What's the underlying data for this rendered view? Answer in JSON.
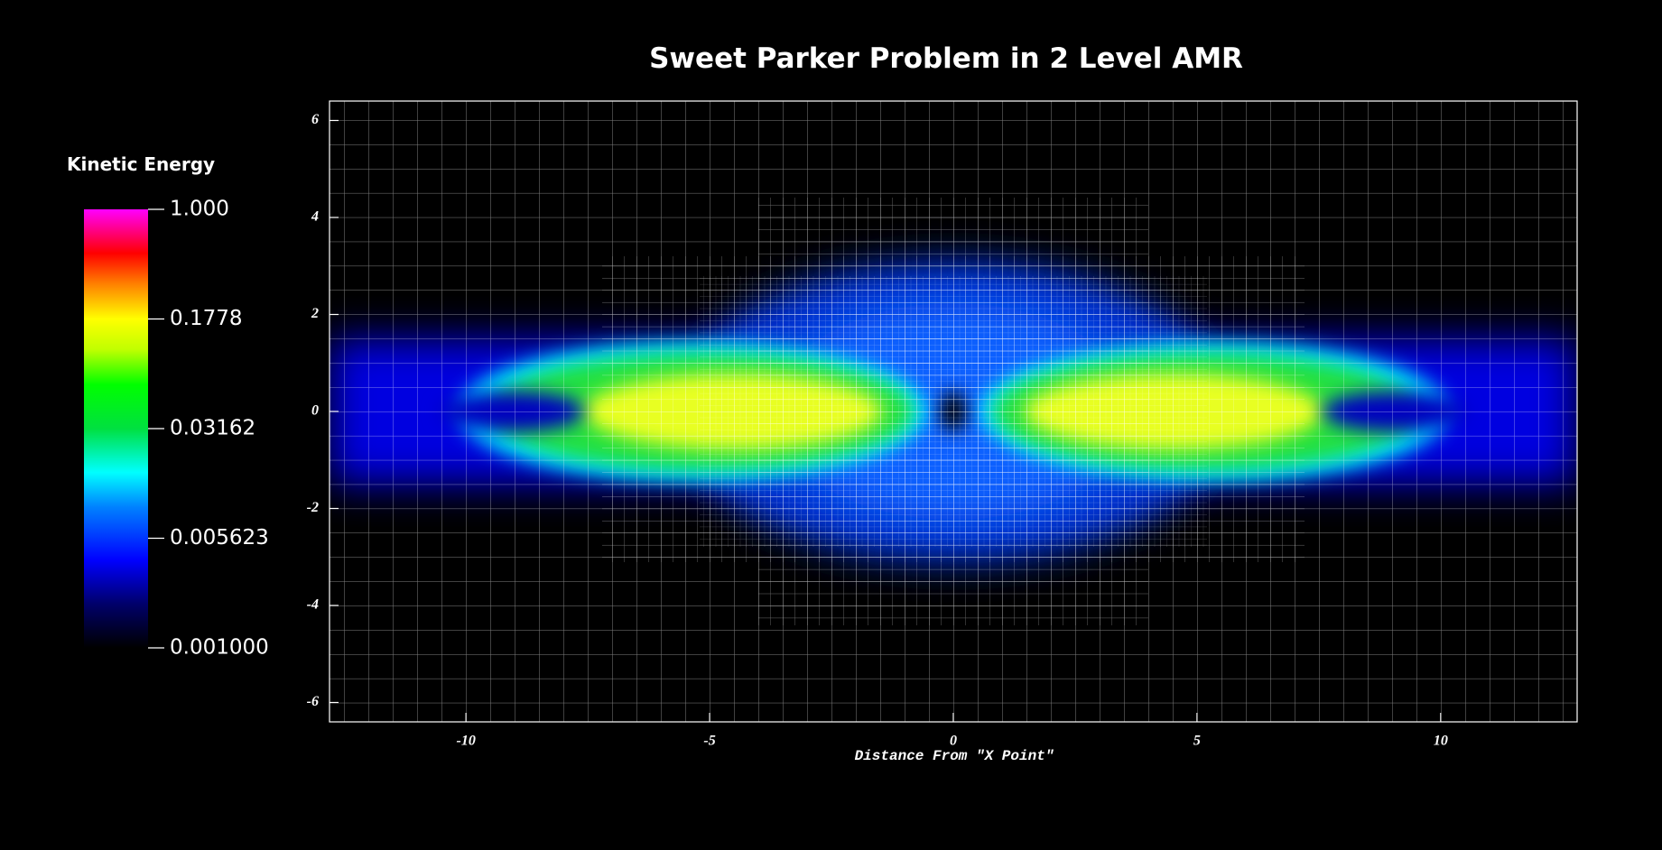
{
  "chart_data": {
    "type": "heatmap",
    "title": "Sweet Parker Problem in 2 Level AMR",
    "xlabel": "Distance From \"X Point\"",
    "xlim": [
      -12.8,
      12.8
    ],
    "xticks": [
      -10,
      -5,
      0,
      5,
      10
    ],
    "ylim": [
      -6.4,
      6.4
    ],
    "yticks": [
      -6,
      -4,
      -2,
      0,
      2,
      4,
      6
    ],
    "colorbar": {
      "label": "Kinetic Energy",
      "log": true,
      "clim": [
        0.001,
        1
      ],
      "ticks": [
        {
          "value": 0.001,
          "label": "0.001000"
        },
        0.005623,
        0.03162,
        0.1778,
        {
          "value": 1,
          "label": "1.000"
        }
      ]
    }
  }
}
